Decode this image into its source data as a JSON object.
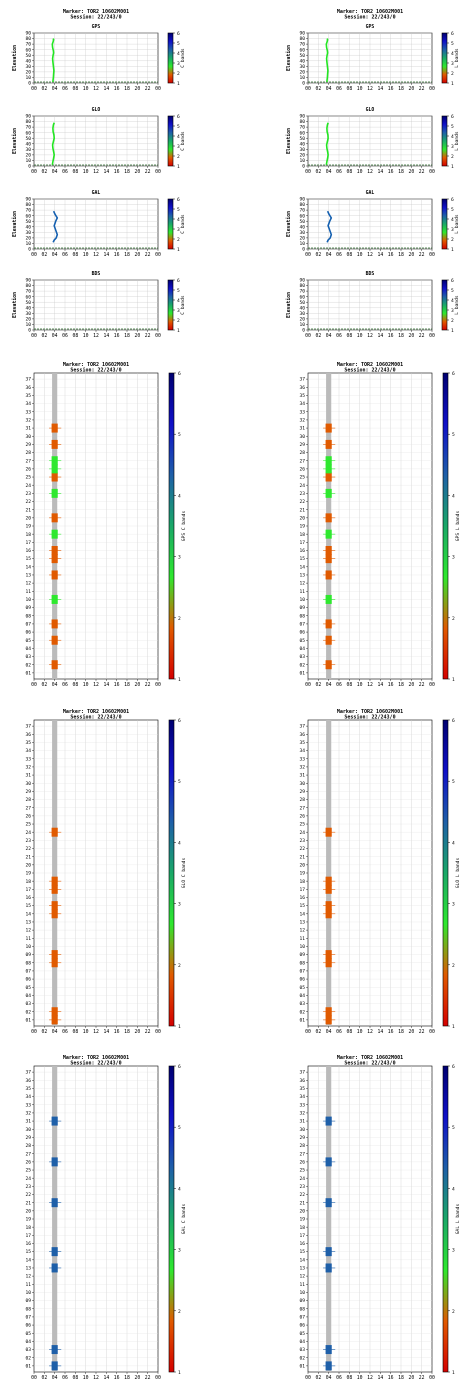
{
  "colors": {
    "colorbar": [
      "#d40000",
      "#e05a00",
      "#2ee82e",
      "#1aa868",
      "#1e5fa8",
      "#1010c8",
      "#000070"
    ],
    "gps": "#22e622",
    "glo": "#22e622",
    "gal": "#1560b0",
    "gray_band": "#bbbbbb",
    "grid": "#c8c8c8"
  },
  "chart_data": [
    {
      "type": "line",
      "id": "elev-gps-c",
      "header": [
        "Marker: TOR2 10602M001",
        "Session: 22/243/0"
      ],
      "title": "GPS",
      "ylabel": "Elevation",
      "cbar_label": "C bands",
      "yticks": [
        0,
        10,
        20,
        30,
        40,
        50,
        60,
        70,
        80,
        90
      ],
      "xticks": [
        "00",
        "02",
        "04",
        "06",
        "08",
        "10",
        "12",
        "14",
        "16",
        "18",
        "20",
        "22",
        "00"
      ],
      "cbar_ticks": [
        "1",
        "2",
        "3",
        "4",
        "5",
        "6"
      ],
      "ylim": [
        0,
        90
      ],
      "xlim": [
        0,
        24
      ],
      "series": [
        {
          "x": [
            3.65,
            3.7,
            3.75,
            3.8,
            3.85,
            3.75,
            3.65,
            3.6,
            3.7,
            3.8,
            3.75,
            3.6,
            3.55,
            3.7,
            3.8,
            3.7
          ],
          "y": [
            2,
            6,
            10,
            16,
            22,
            30,
            38,
            44,
            50,
            54,
            58,
            64,
            70,
            74,
            78,
            80
          ]
        }
      ]
    },
    {
      "type": "line",
      "id": "elev-gps-l",
      "header": [
        "Marker: TOR2 10602M001",
        "Session: 22/243/0"
      ],
      "title": "GPS",
      "ylabel": "Elevation",
      "cbar_label": "L bands",
      "yticks": [
        0,
        10,
        20,
        30,
        40,
        50,
        60,
        70,
        80,
        90
      ],
      "xticks": [
        "00",
        "02",
        "04",
        "06",
        "08",
        "10",
        "12",
        "14",
        "16",
        "18",
        "20",
        "22",
        "00"
      ],
      "cbar_ticks": [
        "1",
        "2",
        "3",
        "4",
        "5",
        "6"
      ],
      "ylim": [
        0,
        90
      ],
      "xlim": [
        0,
        24
      ],
      "series": [
        {
          "x": [
            3.65,
            3.7,
            3.75,
            3.8,
            3.85,
            3.75,
            3.65,
            3.6,
            3.7,
            3.8,
            3.75,
            3.6,
            3.55,
            3.7,
            3.8,
            3.7
          ],
          "y": [
            2,
            6,
            10,
            16,
            22,
            30,
            38,
            44,
            50,
            54,
            58,
            64,
            70,
            74,
            78,
            80
          ]
        }
      ]
    },
    {
      "type": "line",
      "id": "elev-glo-c",
      "title": "GLO",
      "ylabel": "Elevation",
      "cbar_label": "C bands",
      "yticks": [
        0,
        10,
        20,
        30,
        40,
        50,
        60,
        70,
        80,
        90
      ],
      "xticks": [
        "00",
        "02",
        "04",
        "06",
        "08",
        "10",
        "12",
        "14",
        "16",
        "18",
        "20",
        "22",
        "00"
      ],
      "cbar_ticks": [
        "1",
        "2",
        "3",
        "4",
        "5",
        "6"
      ],
      "ylim": [
        0,
        90
      ],
      "xlim": [
        0,
        24
      ],
      "series": [
        {
          "x": [
            3.55,
            3.65,
            3.8,
            3.9,
            3.8,
            3.65,
            3.6,
            3.75,
            3.9,
            3.85,
            3.7,
            3.65,
            3.75,
            3.9
          ],
          "y": [
            2,
            8,
            14,
            20,
            26,
            32,
            38,
            44,
            50,
            56,
            62,
            68,
            74,
            78
          ]
        }
      ]
    },
    {
      "type": "line",
      "id": "elev-glo-l",
      "title": "GLO",
      "ylabel": "Elevation",
      "cbar_label": "L bands",
      "yticks": [
        0,
        10,
        20,
        30,
        40,
        50,
        60,
        70,
        80,
        90
      ],
      "xticks": [
        "00",
        "02",
        "04",
        "06",
        "08",
        "10",
        "12",
        "14",
        "16",
        "18",
        "20",
        "22",
        "00"
      ],
      "cbar_ticks": [
        "1",
        "2",
        "3",
        "4",
        "5",
        "6"
      ],
      "ylim": [
        0,
        90
      ],
      "xlim": [
        0,
        24
      ],
      "series": [
        {
          "x": [
            3.55,
            3.65,
            3.8,
            3.9,
            3.8,
            3.65,
            3.6,
            3.75,
            3.9,
            3.85,
            3.7,
            3.65,
            3.75,
            3.9
          ],
          "y": [
            2,
            8,
            14,
            20,
            26,
            32,
            38,
            44,
            50,
            56,
            62,
            68,
            74,
            78
          ]
        }
      ]
    },
    {
      "type": "line",
      "id": "elev-gal-c",
      "title": "GAL",
      "ylabel": "Elevation",
      "cbar_label": "C bands",
      "yticks": [
        0,
        10,
        20,
        30,
        40,
        50,
        60,
        70,
        80,
        90
      ],
      "xticks": [
        "00",
        "02",
        "04",
        "06",
        "08",
        "10",
        "12",
        "14",
        "16",
        "18",
        "20",
        "22",
        "00"
      ],
      "cbar_ticks": [
        "1",
        "2",
        "3",
        "4",
        "5",
        "6"
      ],
      "ylim": [
        0,
        90
      ],
      "xlim": [
        0,
        24
      ],
      "series": [
        {
          "x": [
            3.7,
            3.9,
            4.3,
            4.5,
            4.2,
            3.9,
            4.2,
            4.5,
            4.1,
            3.8
          ],
          "y": [
            12,
            16,
            20,
            26,
            34,
            42,
            50,
            56,
            62,
            68
          ]
        }
      ]
    },
    {
      "type": "line",
      "id": "elev-gal-l",
      "title": "GAL",
      "ylabel": "Elevation",
      "cbar_label": "L bands",
      "yticks": [
        0,
        10,
        20,
        30,
        40,
        50,
        60,
        70,
        80,
        90
      ],
      "xticks": [
        "00",
        "02",
        "04",
        "06",
        "08",
        "10",
        "12",
        "14",
        "16",
        "18",
        "20",
        "22",
        "00"
      ],
      "cbar_ticks": [
        "1",
        "2",
        "3",
        "4",
        "5",
        "6"
      ],
      "ylim": [
        0,
        90
      ],
      "xlim": [
        0,
        24
      ],
      "series": [
        {
          "x": [
            3.7,
            3.9,
            4.3,
            4.5,
            4.2,
            3.9,
            4.2,
            4.5,
            4.1,
            3.8
          ],
          "y": [
            12,
            16,
            20,
            26,
            34,
            42,
            50,
            56,
            62,
            68
          ]
        }
      ]
    },
    {
      "type": "line",
      "id": "elev-bds-c",
      "title": "BDS",
      "ylabel": "Elevation",
      "cbar_label": "C bands",
      "yticks": [
        0,
        10,
        20,
        30,
        40,
        50,
        60,
        70,
        80,
        90
      ],
      "xticks": [
        "00",
        "02",
        "04",
        "06",
        "08",
        "10",
        "12",
        "14",
        "16",
        "18",
        "20",
        "22",
        "00"
      ],
      "cbar_ticks": [
        "1",
        "2",
        "3",
        "4",
        "5",
        "6"
      ],
      "ylim": [
        0,
        90
      ],
      "xlim": [
        0,
        24
      ],
      "series": []
    },
    {
      "type": "line",
      "id": "elev-bds-l",
      "title": "BDS",
      "ylabel": "Elevation",
      "cbar_label": "L bands",
      "yticks": [
        0,
        10,
        20,
        30,
        40,
        50,
        60,
        70,
        80,
        90
      ],
      "xticks": [
        "00",
        "02",
        "04",
        "06",
        "08",
        "10",
        "12",
        "14",
        "16",
        "18",
        "20",
        "22",
        "00"
      ],
      "cbar_ticks": [
        "1",
        "2",
        "3",
        "4",
        "5",
        "6"
      ],
      "ylim": [
        0,
        90
      ],
      "xlim": [
        0,
        24
      ],
      "series": []
    },
    {
      "type": "heatmap",
      "id": "prn-gps-c",
      "header": [
        "Marker: TOR2 10602M001",
        "Session: 22/243/0"
      ],
      "cbar_label": "GPS C bands",
      "yticks": [
        "01",
        "02",
        "03",
        "04",
        "05",
        "06",
        "07",
        "08",
        "09",
        "10",
        "11",
        "12",
        "13",
        "14",
        "15",
        "16",
        "17",
        "18",
        "19",
        "20",
        "21",
        "22",
        "23",
        "24",
        "25",
        "26",
        "27",
        "28",
        "29",
        "30",
        "31",
        "32",
        "33",
        "34",
        "35",
        "36",
        "37"
      ],
      "xticks": [
        "00",
        "02",
        "04",
        "06",
        "08",
        "10",
        "12",
        "14",
        "16",
        "18",
        "20",
        "22",
        "00"
      ],
      "cbar_ticks": [
        "1",
        "2",
        "3",
        "4",
        "5",
        "6"
      ],
      "gray_x": [
        3.5,
        4.5
      ],
      "cells": [
        {
          "prn": 2,
          "band": 2
        },
        {
          "prn": 5,
          "band": 2
        },
        {
          "prn": 7,
          "band": 2
        },
        {
          "prn": 10,
          "band": 3
        },
        {
          "prn": 13,
          "band": 2
        },
        {
          "prn": 15,
          "band": 2
        },
        {
          "prn": 16,
          "band": 2
        },
        {
          "prn": 18,
          "band": 3
        },
        {
          "prn": 20,
          "band": 2
        },
        {
          "prn": 23,
          "band": 3
        },
        {
          "prn": 25,
          "band": 2
        },
        {
          "prn": 26,
          "band": 3
        },
        {
          "prn": 27,
          "band": 3
        },
        {
          "prn": 29,
          "band": 2
        },
        {
          "prn": 31,
          "band": 2
        }
      ]
    },
    {
      "type": "heatmap",
      "id": "prn-gps-l",
      "header": [
        "Marker: TOR2 10602M001",
        "Session: 22/243/0"
      ],
      "cbar_label": "GPS L bands",
      "yticks": [
        "01",
        "02",
        "03",
        "04",
        "05",
        "06",
        "07",
        "08",
        "09",
        "10",
        "11",
        "12",
        "13",
        "14",
        "15",
        "16",
        "17",
        "18",
        "19",
        "20",
        "21",
        "22",
        "23",
        "24",
        "25",
        "26",
        "27",
        "28",
        "29",
        "30",
        "31",
        "32",
        "33",
        "34",
        "35",
        "36",
        "37"
      ],
      "xticks": [
        "00",
        "02",
        "04",
        "06",
        "08",
        "10",
        "12",
        "14",
        "16",
        "18",
        "20",
        "22",
        "00"
      ],
      "cbar_ticks": [
        "1",
        "2",
        "3",
        "4",
        "5",
        "6"
      ],
      "gray_x": [
        3.5,
        4.5
      ],
      "cells": [
        {
          "prn": 2,
          "band": 2
        },
        {
          "prn": 5,
          "band": 2
        },
        {
          "prn": 7,
          "band": 2
        },
        {
          "prn": 10,
          "band": 3
        },
        {
          "prn": 13,
          "band": 2
        },
        {
          "prn": 15,
          "band": 2
        },
        {
          "prn": 16,
          "band": 2
        },
        {
          "prn": 18,
          "band": 3
        },
        {
          "prn": 20,
          "band": 2
        },
        {
          "prn": 23,
          "band": 3
        },
        {
          "prn": 25,
          "band": 2
        },
        {
          "prn": 26,
          "band": 3
        },
        {
          "prn": 27,
          "band": 3
        },
        {
          "prn": 29,
          "band": 2
        },
        {
          "prn": 31,
          "band": 2
        }
      ]
    },
    {
      "type": "heatmap",
      "id": "prn-glo-c",
      "header": [
        "Marker: TOR2 10602M001",
        "Session: 22/243/0"
      ],
      "cbar_label": "GLO C bands",
      "yticks": [
        "01",
        "02",
        "03",
        "04",
        "05",
        "06",
        "07",
        "08",
        "09",
        "10",
        "11",
        "12",
        "13",
        "14",
        "15",
        "16",
        "17",
        "18",
        "19",
        "20",
        "21",
        "22",
        "23",
        "24",
        "25",
        "26",
        "27",
        "28",
        "29",
        "30",
        "31",
        "32",
        "33",
        "34",
        "35",
        "36",
        "37"
      ],
      "xticks": [
        "00",
        "02",
        "04",
        "06",
        "08",
        "10",
        "12",
        "14",
        "16",
        "18",
        "20",
        "22",
        "00"
      ],
      "cbar_ticks": [
        "1",
        "2",
        "3",
        "4",
        "5",
        "6"
      ],
      "gray_x": [
        3.5,
        4.5
      ],
      "cells": [
        {
          "prn": 1,
          "band": 2
        },
        {
          "prn": 2,
          "band": 2
        },
        {
          "prn": 8,
          "band": 2
        },
        {
          "prn": 9,
          "band": 2
        },
        {
          "prn": 14,
          "band": 2
        },
        {
          "prn": 15,
          "band": 2
        },
        {
          "prn": 17,
          "band": 2
        },
        {
          "prn": 18,
          "band": 2
        },
        {
          "prn": 24,
          "band": 2
        }
      ]
    },
    {
      "type": "heatmap",
      "id": "prn-glo-l",
      "header": [
        "Marker: TOR2 10602M001",
        "Session: 22/243/0"
      ],
      "cbar_label": "GLO L bands",
      "yticks": [
        "01",
        "02",
        "03",
        "04",
        "05",
        "06",
        "07",
        "08",
        "09",
        "10",
        "11",
        "12",
        "13",
        "14",
        "15",
        "16",
        "17",
        "18",
        "19",
        "20",
        "21",
        "22",
        "23",
        "24",
        "25",
        "26",
        "27",
        "28",
        "29",
        "30",
        "31",
        "32",
        "33",
        "34",
        "35",
        "36",
        "37"
      ],
      "xticks": [
        "00",
        "02",
        "04",
        "06",
        "08",
        "10",
        "12",
        "14",
        "16",
        "18",
        "20",
        "22",
        "00"
      ],
      "cbar_ticks": [
        "1",
        "2",
        "3",
        "4",
        "5",
        "6"
      ],
      "gray_x": [
        3.5,
        4.5
      ],
      "cells": [
        {
          "prn": 1,
          "band": 2
        },
        {
          "prn": 2,
          "band": 2
        },
        {
          "prn": 8,
          "band": 2
        },
        {
          "prn": 9,
          "band": 2
        },
        {
          "prn": 14,
          "band": 2
        },
        {
          "prn": 15,
          "band": 2
        },
        {
          "prn": 17,
          "band": 2
        },
        {
          "prn": 18,
          "band": 2
        },
        {
          "prn": 24,
          "band": 2
        }
      ]
    },
    {
      "type": "heatmap",
      "id": "prn-gal-c",
      "header": [
        "Marker: TOR2 10602M001",
        "Session: 22/243/0"
      ],
      "cbar_label": "GAL C bands",
      "yticks": [
        "01",
        "02",
        "03",
        "04",
        "05",
        "06",
        "07",
        "08",
        "09",
        "10",
        "11",
        "12",
        "13",
        "14",
        "15",
        "16",
        "17",
        "18",
        "19",
        "20",
        "21",
        "22",
        "23",
        "24",
        "25",
        "26",
        "27",
        "28",
        "29",
        "30",
        "31",
        "32",
        "33",
        "34",
        "35",
        "36",
        "37"
      ],
      "xticks": [
        "00",
        "02",
        "04",
        "06",
        "08",
        "10",
        "12",
        "14",
        "16",
        "18",
        "20",
        "22",
        "00"
      ],
      "cbar_ticks": [
        "1",
        "2",
        "3",
        "4",
        "5",
        "6"
      ],
      "gray_x": [
        3.5,
        4.5
      ],
      "cells": [
        {
          "prn": 1,
          "band": 4
        },
        {
          "prn": 3,
          "band": 4
        },
        {
          "prn": 13,
          "band": 4
        },
        {
          "prn": 15,
          "band": 4
        },
        {
          "prn": 21,
          "band": 4
        },
        {
          "prn": 26,
          "band": 4
        },
        {
          "prn": 31,
          "band": 4
        }
      ]
    },
    {
      "type": "heatmap",
      "id": "prn-gal-l",
      "header": [
        "Marker: TOR2 10602M001",
        "Session: 22/243/0"
      ],
      "cbar_label": "GAL L bands",
      "yticks": [
        "01",
        "02",
        "03",
        "04",
        "05",
        "06",
        "07",
        "08",
        "09",
        "10",
        "11",
        "12",
        "13",
        "14",
        "15",
        "16",
        "17",
        "18",
        "19",
        "20",
        "21",
        "22",
        "23",
        "24",
        "25",
        "26",
        "27",
        "28",
        "29",
        "30",
        "31",
        "32",
        "33",
        "34",
        "35",
        "36",
        "37"
      ],
      "xticks": [
        "00",
        "02",
        "04",
        "06",
        "08",
        "10",
        "12",
        "14",
        "16",
        "18",
        "20",
        "22",
        "00"
      ],
      "cbar_ticks": [
        "1",
        "2",
        "3",
        "4",
        "5",
        "6"
      ],
      "gray_x": [
        3.5,
        4.5
      ],
      "cells": [
        {
          "prn": 1,
          "band": 4
        },
        {
          "prn": 3,
          "band": 4
        },
        {
          "prn": 13,
          "band": 4
        },
        {
          "prn": 15,
          "band": 4
        },
        {
          "prn": 21,
          "band": 4
        },
        {
          "prn": 26,
          "band": 4
        },
        {
          "prn": 31,
          "band": 4
        }
      ]
    }
  ]
}
